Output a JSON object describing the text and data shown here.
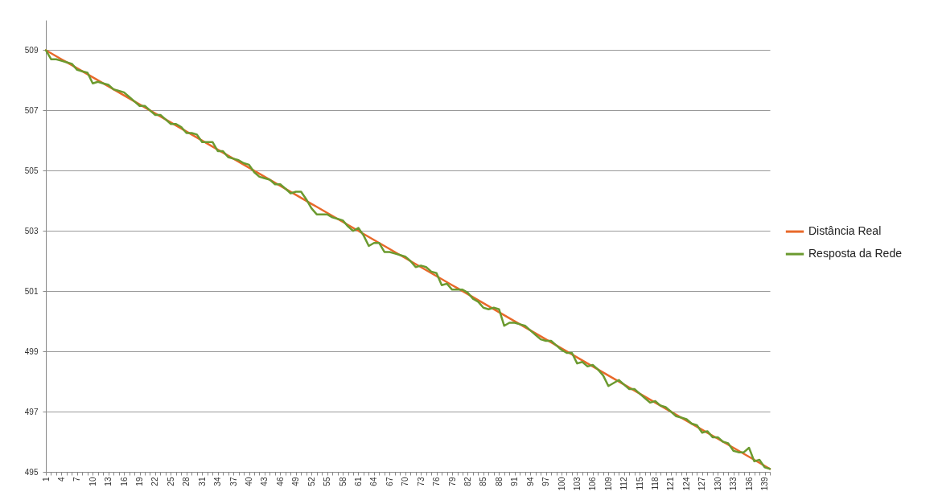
{
  "chart_data": {
    "type": "line",
    "categories": [
      "1",
      null,
      null,
      "4",
      null,
      null,
      "7",
      null,
      null,
      "10",
      null,
      null,
      "13",
      null,
      null,
      "16",
      null,
      null,
      "19",
      null,
      null,
      "22",
      null,
      null,
      "25",
      null,
      null,
      "28",
      null,
      null,
      "31",
      null,
      null,
      "34",
      null,
      null,
      "37",
      null,
      null,
      "40",
      null,
      null,
      "43",
      null,
      null,
      "46",
      null,
      null,
      "49",
      null,
      null,
      "52",
      null,
      null,
      "55",
      null,
      null,
      "58",
      null,
      null,
      "61",
      null,
      null,
      "64",
      null,
      null,
      "67",
      null,
      null,
      "70",
      null,
      null,
      "73",
      null,
      null,
      "76",
      null,
      null,
      "79",
      null,
      null,
      "82",
      null,
      null,
      "85",
      null,
      null,
      "88",
      null,
      null,
      "91",
      null,
      null,
      "94",
      null,
      null,
      "97",
      null,
      null,
      "100",
      null,
      null,
      "103",
      null,
      null,
      "106",
      null,
      null,
      "109",
      null,
      null,
      "112",
      null,
      null,
      "115",
      null,
      null,
      "118",
      null,
      null,
      "121",
      null,
      null,
      "124",
      null,
      null,
      "127",
      null,
      null,
      "130",
      null,
      null,
      "133",
      null,
      null,
      "136",
      null,
      null,
      "139",
      null
    ],
    "series": [
      {
        "name": "Distância Real",
        "color": "#e8692a",
        "values": [
          509,
          508.9,
          508.8,
          508.7,
          508.6,
          508.5,
          508.4,
          508.3,
          508.2,
          508.1,
          508,
          507.9,
          507.8,
          507.7,
          507.6,
          507.5,
          507.4,
          507.3,
          507.2,
          507.1,
          507,
          506.9,
          506.8,
          506.7,
          506.6,
          506.5,
          506.4,
          506.3,
          506.2,
          506.1,
          506,
          505.9,
          505.8,
          505.7,
          505.6,
          505.5,
          505.4,
          505.3,
          505.2,
          505.1,
          505,
          504.9,
          504.8,
          504.7,
          504.6,
          504.5,
          504.4,
          504.3,
          504.2,
          504.1,
          504,
          503.9,
          503.8,
          503.7,
          503.6,
          503.5,
          503.4,
          503.3,
          503.2,
          503.1,
          503,
          502.9,
          502.8,
          502.7,
          502.6,
          502.5,
          502.4,
          502.3,
          502.2,
          502.1,
          502,
          501.9,
          501.8,
          501.7,
          501.6,
          501.5,
          501.4,
          501.3,
          501.2,
          501.1,
          501,
          500.9,
          500.8,
          500.7,
          500.6,
          500.5,
          500.4,
          500.3,
          500.2,
          500.1,
          500,
          499.9,
          499.8,
          499.7,
          499.6,
          499.5,
          499.4,
          499.3,
          499.2,
          499.1,
          499,
          498.9,
          498.8,
          498.7,
          498.6,
          498.5,
          498.4,
          498.3,
          498.2,
          498.1,
          498,
          497.9,
          497.8,
          497.7,
          497.6,
          497.5,
          497.4,
          497.3,
          497.2,
          497.1,
          497,
          496.9,
          496.8,
          496.7,
          496.6,
          496.5,
          496.4,
          496.3,
          496.2,
          496.1,
          496,
          495.9,
          495.8,
          495.7,
          495.6,
          495.5,
          495.4,
          495.3,
          495.2,
          495.1
        ]
      },
      {
        "name": "Resposta da Rede",
        "color": "#6b9a2f",
        "values": [
          509,
          508.7,
          508.7,
          508.65,
          508.6,
          508.55,
          508.35,
          508.3,
          508.25,
          507.9,
          507.95,
          507.9,
          507.85,
          507.7,
          507.65,
          507.6,
          507.45,
          507.3,
          507.15,
          507.15,
          507,
          506.85,
          506.85,
          506.7,
          506.55,
          506.55,
          506.45,
          506.25,
          506.25,
          506.2,
          505.95,
          505.95,
          505.95,
          505.65,
          505.65,
          505.45,
          505.4,
          505.35,
          505.25,
          505.2,
          504.95,
          504.8,
          504.75,
          504.7,
          504.55,
          504.55,
          504.4,
          504.25,
          504.3,
          504.3,
          504.05,
          503.75,
          503.55,
          503.55,
          503.55,
          503.45,
          503.4,
          503.35,
          503.15,
          503,
          503.1,
          502.85,
          502.5,
          502.6,
          502.6,
          502.3,
          502.3,
          502.25,
          502.2,
          502.15,
          502,
          501.8,
          501.85,
          501.8,
          501.65,
          501.6,
          501.2,
          501.25,
          501.05,
          501.05,
          501.05,
          500.95,
          500.75,
          500.65,
          500.45,
          500.4,
          500.45,
          500.4,
          499.85,
          499.95,
          499.95,
          499.9,
          499.85,
          499.7,
          499.55,
          499.4,
          499.35,
          499.35,
          499.2,
          499.05,
          498.95,
          498.95,
          498.6,
          498.65,
          498.5,
          498.55,
          498.4,
          498.2,
          497.85,
          497.95,
          498.05,
          497.9,
          497.75,
          497.75,
          497.6,
          497.45,
          497.3,
          497.35,
          497.2,
          497.15,
          497,
          496.85,
          496.8,
          496.75,
          496.6,
          496.55,
          496.3,
          496.35,
          496.15,
          496.15,
          496,
          495.95,
          495.7,
          495.65,
          495.65,
          495.8,
          495.35,
          495.4,
          495.15,
          495.1
        ]
      }
    ],
    "ylim": [
      495,
      510
    ],
    "yticks": [
      495,
      497,
      499,
      501,
      503,
      505,
      507,
      509
    ],
    "grid": "y",
    "legend": "right"
  }
}
